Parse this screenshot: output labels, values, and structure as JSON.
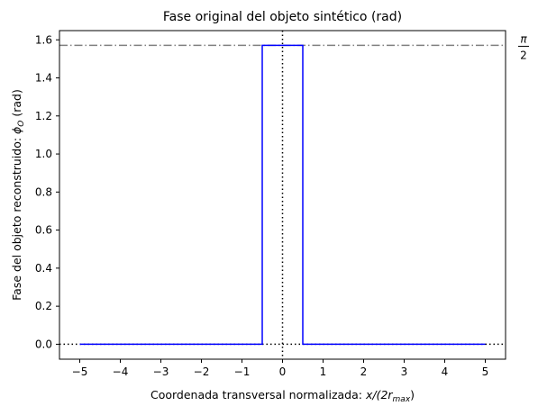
{
  "chart_data": {
    "type": "line",
    "title": "Fase original del objeto sintético (rad)",
    "xlabel": {
      "prefix": "Coordenada transversal normalizada: ",
      "math": "x/(2r",
      "sub": "max",
      "suffix": ")"
    },
    "ylabel": {
      "prefix": "Fase del objeto reconstruido: ",
      "math": "ϕ",
      "sub": "O",
      "suffix": " (rad)"
    },
    "xlim": [
      -5.5,
      5.5
    ],
    "ylim": [
      -0.0785,
      1.6485
    ],
    "xticks": [
      -5,
      -4,
      -3,
      -2,
      -1,
      0,
      1,
      2,
      3,
      4,
      5
    ],
    "xtick_labels": [
      "−5",
      "−4",
      "−3",
      "−2",
      "−1",
      "0",
      "1",
      "2",
      "3",
      "4",
      "5"
    ],
    "yticks": [
      0.0,
      0.2,
      0.4,
      0.6,
      0.8,
      1.0,
      1.2,
      1.4,
      1.6
    ],
    "ytick_labels": [
      "0.0",
      "0.2",
      "0.4",
      "0.6",
      "0.8",
      "1.0",
      "1.2",
      "1.4",
      "1.6"
    ],
    "grid": false,
    "series": [
      {
        "color": "#0000ff",
        "style": "solid",
        "x": [
          -5,
          -0.5,
          -0.5,
          0.5,
          0.5,
          5
        ],
        "y": [
          0,
          0,
          1.5708,
          1.5708,
          0,
          0
        ]
      }
    ],
    "reference_lines": [
      {
        "orientation": "horizontal",
        "value": 1.5708,
        "color": "#808080",
        "style": "dashdot",
        "label_num": "π",
        "label_den": "2"
      },
      {
        "orientation": "horizontal",
        "value": 0,
        "color": "#000000",
        "style": "dotted"
      },
      {
        "orientation": "vertical",
        "value": 0,
        "color": "#000000",
        "style": "dotted"
      }
    ]
  }
}
